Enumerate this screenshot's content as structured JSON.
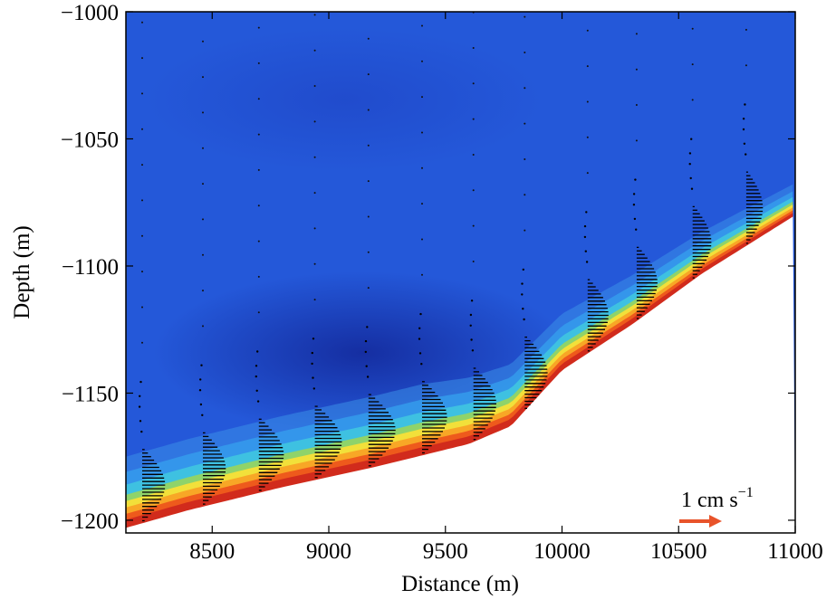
{
  "chart_data": {
    "type": "heatmap",
    "title": "",
    "xlabel": "Distance (m)",
    "ylabel": "Depth (m)",
    "xlim": [
      8130,
      11000
    ],
    "ylim": [
      -1205,
      -1000
    ],
    "xticks": [
      8500,
      9000,
      9500,
      10000,
      10500,
      11000
    ],
    "yticks": [
      -1000,
      -1050,
      -1100,
      -1150,
      -1200
    ],
    "xtick_labels": [
      "8500",
      "9000",
      "9500",
      "10000",
      "10500",
      "11000"
    ],
    "ytick_labels": [
      "−1000",
      "−1050",
      "−1100",
      "−1150",
      "−1200"
    ],
    "bottom_boundary": {
      "x": [
        8130,
        8400,
        8800,
        9200,
        9600,
        9780,
        10000,
        10300,
        10600,
        11000
      ],
      "y": [
        -1203,
        -1196,
        -1187,
        -1179,
        -1170,
        -1163,
        -1141,
        -1123,
        -1103,
        -1080
      ]
    },
    "velocity_profiles": {
      "x": [
        8200,
        8460,
        8700,
        8940,
        9170,
        9400,
        9620,
        9840,
        10110,
        10320,
        10560,
        10790
      ],
      "speed_max_cm_s": [
        0.55,
        0.55,
        0.6,
        0.65,
        0.65,
        0.6,
        0.55,
        0.55,
        0.5,
        0.5,
        0.45,
        0.4
      ]
    },
    "colormap": "jet",
    "scale_arrow": {
      "label": "1 cm s",
      "exponent": "−1",
      "value_cm_s": 1,
      "color": "#e8532a"
    },
    "grid": false,
    "legend": "none"
  }
}
